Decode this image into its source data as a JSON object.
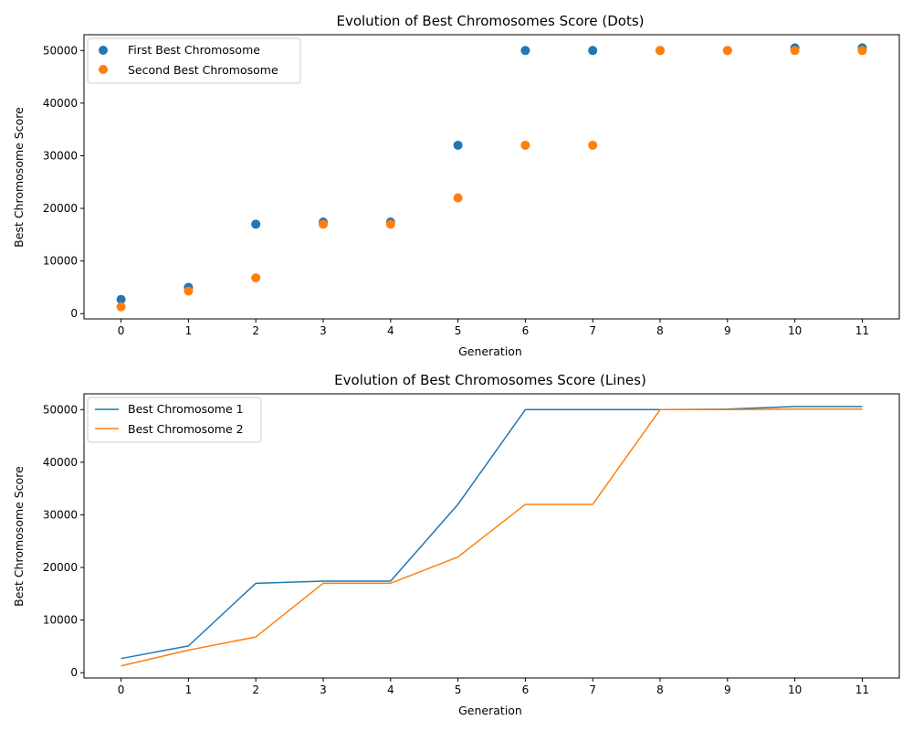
{
  "chart_data": [
    {
      "type": "scatter",
      "title": "Evolution of Best Chromosomes Score (Dots)",
      "xlabel": "Generation",
      "ylabel": "Best Chromosome Score",
      "x": [
        0,
        1,
        2,
        3,
        4,
        5,
        6,
        7,
        8,
        9,
        10,
        11
      ],
      "xlim": [
        -0.55,
        11.55
      ],
      "ylim": [
        -1000,
        53000
      ],
      "xticks": [
        0,
        1,
        2,
        3,
        4,
        5,
        6,
        7,
        8,
        9,
        10,
        11
      ],
      "yticks": [
        0,
        10000,
        20000,
        30000,
        40000,
        50000
      ],
      "grid": false,
      "legend_position": "upper-left",
      "series": [
        {
          "name": "First Best Chromosome",
          "color": "#1f77b4",
          "values": [
            2700,
            5000,
            17000,
            17400,
            17400,
            32000,
            50000,
            50000,
            50000,
            50000,
            50500,
            50500
          ]
        },
        {
          "name": "Second Best Chromosome",
          "color": "#ff7f0e",
          "values": [
            1300,
            4300,
            6800,
            17000,
            17000,
            22000,
            32000,
            32000,
            50000,
            50000,
            50000,
            50000
          ]
        }
      ]
    },
    {
      "type": "line",
      "title": "Evolution of Best Chromosomes Score (Lines)",
      "xlabel": "Generation",
      "ylabel": "Best Chromosome Score",
      "x": [
        0,
        1,
        2,
        3,
        4,
        5,
        6,
        7,
        8,
        9,
        10,
        11
      ],
      "xlim": [
        -0.55,
        11.55
      ],
      "ylim": [
        -1000,
        53000
      ],
      "xticks": [
        0,
        1,
        2,
        3,
        4,
        5,
        6,
        7,
        8,
        9,
        10,
        11
      ],
      "yticks": [
        0,
        10000,
        20000,
        30000,
        40000,
        50000
      ],
      "grid": false,
      "legend_position": "upper-left",
      "series": [
        {
          "name": "Best Chromosome 1",
          "color": "#1f77b4",
          "values": [
            2700,
            5100,
            17000,
            17400,
            17400,
            32000,
            50000,
            50000,
            50000,
            50100,
            50600,
            50600
          ]
        },
        {
          "name": "Best Chromosome 2",
          "color": "#ff7f0e",
          "values": [
            1300,
            4300,
            6800,
            17000,
            17000,
            22000,
            32000,
            32000,
            50000,
            50000,
            50100,
            50100
          ]
        }
      ]
    }
  ]
}
